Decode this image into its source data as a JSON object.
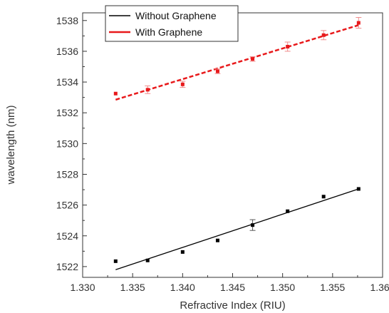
{
  "chart_data": {
    "type": "scatter",
    "title": "",
    "xlabel": "Refractive Index (RIU)",
    "ylabel": "wavelength (nm)",
    "xlim": [
      1.33,
      1.36
    ],
    "ylim": [
      1521.3,
      1538.5
    ],
    "xticks": [
      "1.330",
      "1.335",
      "1.340",
      "1.345",
      "1.350",
      "1.355",
      "1.360"
    ],
    "yticks": [
      "1522",
      "1524",
      "1526",
      "1528",
      "1530",
      "1532",
      "1534",
      "1536",
      "1538"
    ],
    "grid": false,
    "legend_position": "top-left",
    "x": [
      1.3333,
      1.3365,
      1.34,
      1.3435,
      1.347,
      1.3505,
      1.3541,
      1.3576
    ],
    "series": [
      {
        "name": "Without Graphene",
        "color": "#000000",
        "line_style": "solid",
        "values": [
          1522.35,
          1522.4,
          1522.95,
          1523.7,
          1524.7,
          1525.6,
          1526.55,
          1527.05
        ],
        "errors": [
          0,
          0,
          0,
          0,
          0.35,
          0,
          0,
          0
        ],
        "fit": [
          1521.8,
          1527.05
        ]
      },
      {
        "name": "With Graphene",
        "color": "#e8191b",
        "line_style": "dashed",
        "values": [
          1533.25,
          1533.5,
          1533.85,
          1534.7,
          1535.5,
          1536.3,
          1537.05,
          1537.85
        ],
        "errors": [
          0,
          0.25,
          0.2,
          0.15,
          0.15,
          0.3,
          0.3,
          0.35
        ],
        "fit": [
          1532.85,
          1537.7
        ]
      }
    ]
  }
}
